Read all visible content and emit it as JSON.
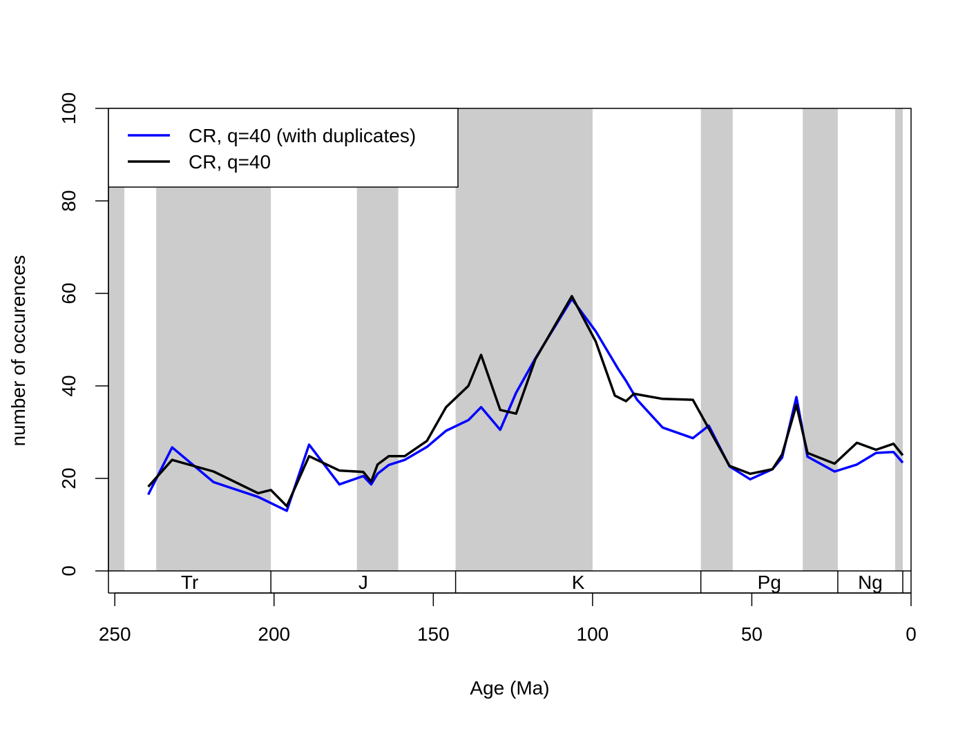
{
  "chart_data": {
    "type": "line",
    "xlabel": "Age (Ma)",
    "ylabel": "number of occurences",
    "xlim": [
      252,
      0
    ],
    "ylim": [
      0,
      100
    ],
    "xticks": [
      250,
      200,
      150,
      100,
      50,
      0
    ],
    "yticks": [
      0,
      20,
      40,
      60,
      80,
      100
    ],
    "grid": false,
    "legend_position": "top-left",
    "shaded_intervals": [
      [
        252,
        247
      ],
      [
        237,
        201
      ],
      [
        174,
        161
      ],
      [
        143,
        100
      ],
      [
        66,
        56
      ],
      [
        34,
        23
      ],
      [
        5,
        2.6
      ]
    ],
    "periods": [
      {
        "label": "Tr",
        "start": 252,
        "end": 201
      },
      {
        "label": "J",
        "start": 201,
        "end": 143
      },
      {
        "label": "K",
        "start": 143,
        "end": 66
      },
      {
        "label": "Pg",
        "start": 66,
        "end": 23
      },
      {
        "label": "Ng",
        "start": 23,
        "end": 2.6
      },
      {
        "label": "",
        "start": 2.6,
        "end": 0
      }
    ],
    "series": [
      {
        "name": "CR, q=40 (with duplicates)",
        "color": "#0000ff",
        "x": [
          239.5,
          232,
          219,
          205,
          196,
          189,
          179.5,
          172,
          169.5,
          167.5,
          164,
          159,
          152,
          146,
          139,
          135,
          129,
          124,
          118,
          106.5,
          99,
          92,
          89.5,
          86,
          78,
          68.5,
          63.5,
          57,
          50.5,
          43.5,
          40.5,
          36,
          32.5,
          24,
          17,
          11,
          5.5,
          2.6
        ],
        "y": [
          16.5,
          26.7,
          19.2,
          16.0,
          13.0,
          27.3,
          18.7,
          20.5,
          18.7,
          21.0,
          22.9,
          24.0,
          26.8,
          30.3,
          32.6,
          35.4,
          30.5,
          38.5,
          45.9,
          58.8,
          51.8,
          43.7,
          41.1,
          37.0,
          31.0,
          28.7,
          31.4,
          22.6,
          19.8,
          22.0,
          24.5,
          37.6,
          24.7,
          21.5,
          23.0,
          25.5,
          25.7,
          23.4
        ],
        "x_range_note": ""
      },
      {
        "name": "CR, q=40",
        "color": "#000000",
        "x": [
          239.5,
          232,
          219,
          205,
          201,
          196,
          189,
          179.5,
          172,
          169.5,
          167.5,
          164,
          159,
          152,
          146,
          139,
          135,
          129,
          124,
          118,
          106.5,
          99,
          93,
          89.5,
          87,
          78,
          68.5,
          57,
          50.5,
          43.5,
          40.5,
          36,
          32.5,
          24,
          17,
          11,
          5.5,
          2.6
        ],
        "y": [
          18.2,
          24.0,
          21.5,
          16.8,
          17.5,
          14.0,
          24.8,
          21.7,
          21.4,
          19.3,
          23.0,
          24.8,
          24.8,
          28.1,
          35.4,
          40.0,
          46.7,
          34.8,
          34.0,
          45.7,
          59.4,
          49.6,
          37.9,
          36.7,
          38.3,
          37.2,
          37.0,
          22.7,
          21.0,
          22.0,
          25.2,
          35.9,
          25.5,
          23.2,
          27.7,
          26.2,
          27.5,
          25.0
        ]
      }
    ]
  }
}
